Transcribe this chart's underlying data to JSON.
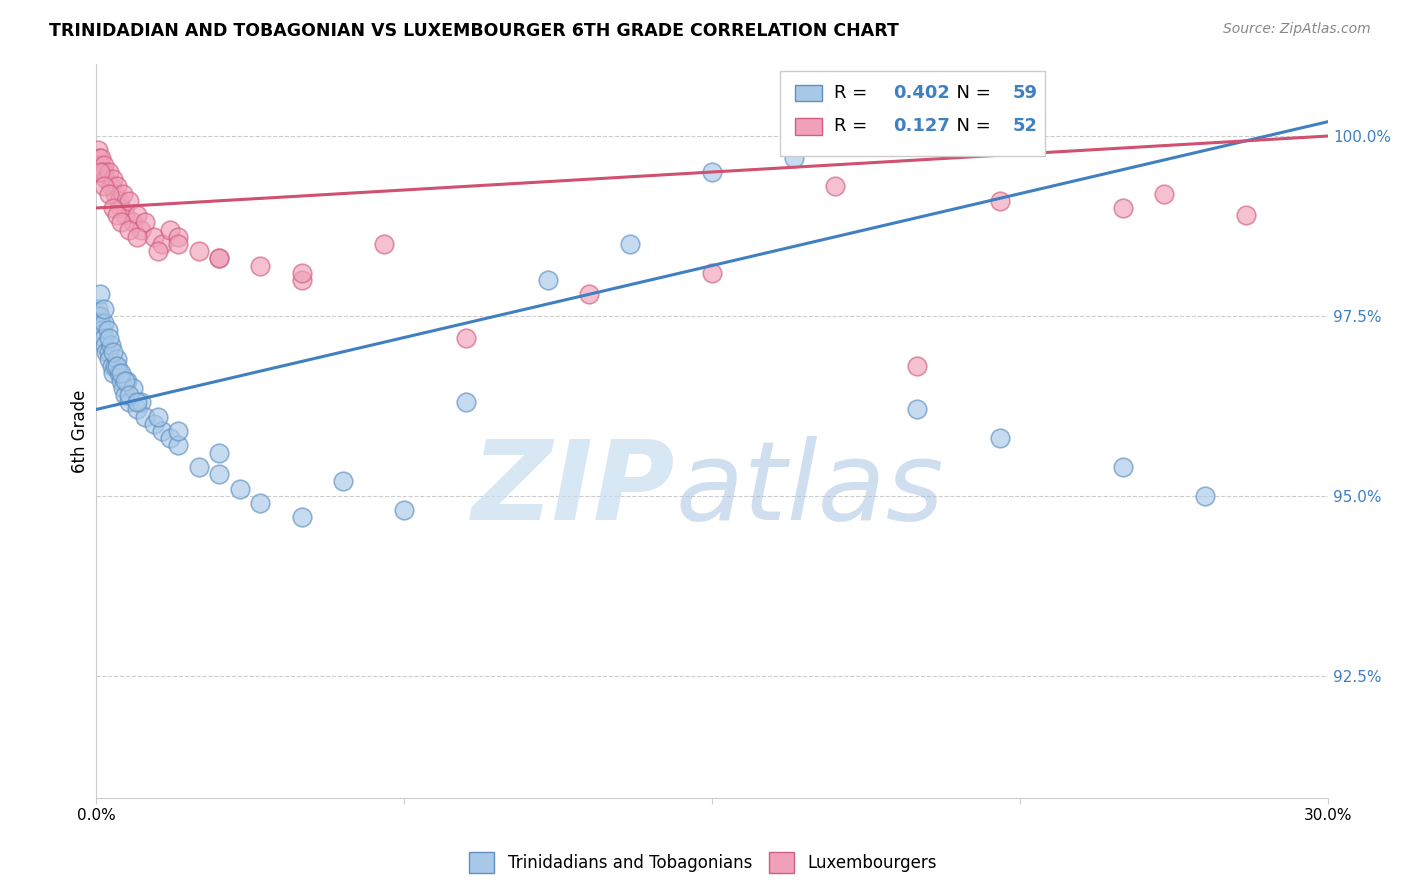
{
  "title": "TRINIDADIAN AND TOBAGONIAN VS LUXEMBOURGER 6TH GRADE CORRELATION CHART",
  "source": "Source: ZipAtlas.com",
  "ylabel": "6th Grade",
  "yticks": [
    92.5,
    95.0,
    97.5,
    100.0
  ],
  "ytick_labels": [
    "92.5%",
    "95.0%",
    "97.5%",
    "100.0%"
  ],
  "xmin": 0.0,
  "xmax": 30.0,
  "ymin": 90.8,
  "ymax": 101.0,
  "blue_R": 0.402,
  "blue_N": 59,
  "pink_R": 0.127,
  "pink_N": 52,
  "blue_color": "#A8C8E8",
  "pink_color": "#F0A0B8",
  "blue_edge_color": "#6090C0",
  "pink_edge_color": "#D06080",
  "blue_line_color": "#4080C0",
  "pink_line_color": "#D05070",
  "blue_label": "Trinidadians and Tobagonians",
  "pink_label": "Luxembourgers",
  "blue_line_x0": 0.0,
  "blue_line_y0": 96.2,
  "blue_line_x1": 30.0,
  "blue_line_y1": 100.2,
  "pink_line_x0": 0.0,
  "pink_line_y0": 99.0,
  "pink_line_x1": 30.0,
  "pink_line_y1": 100.0,
  "legend_R_color": "#4080C0",
  "legend_N_color": "#4080C0"
}
